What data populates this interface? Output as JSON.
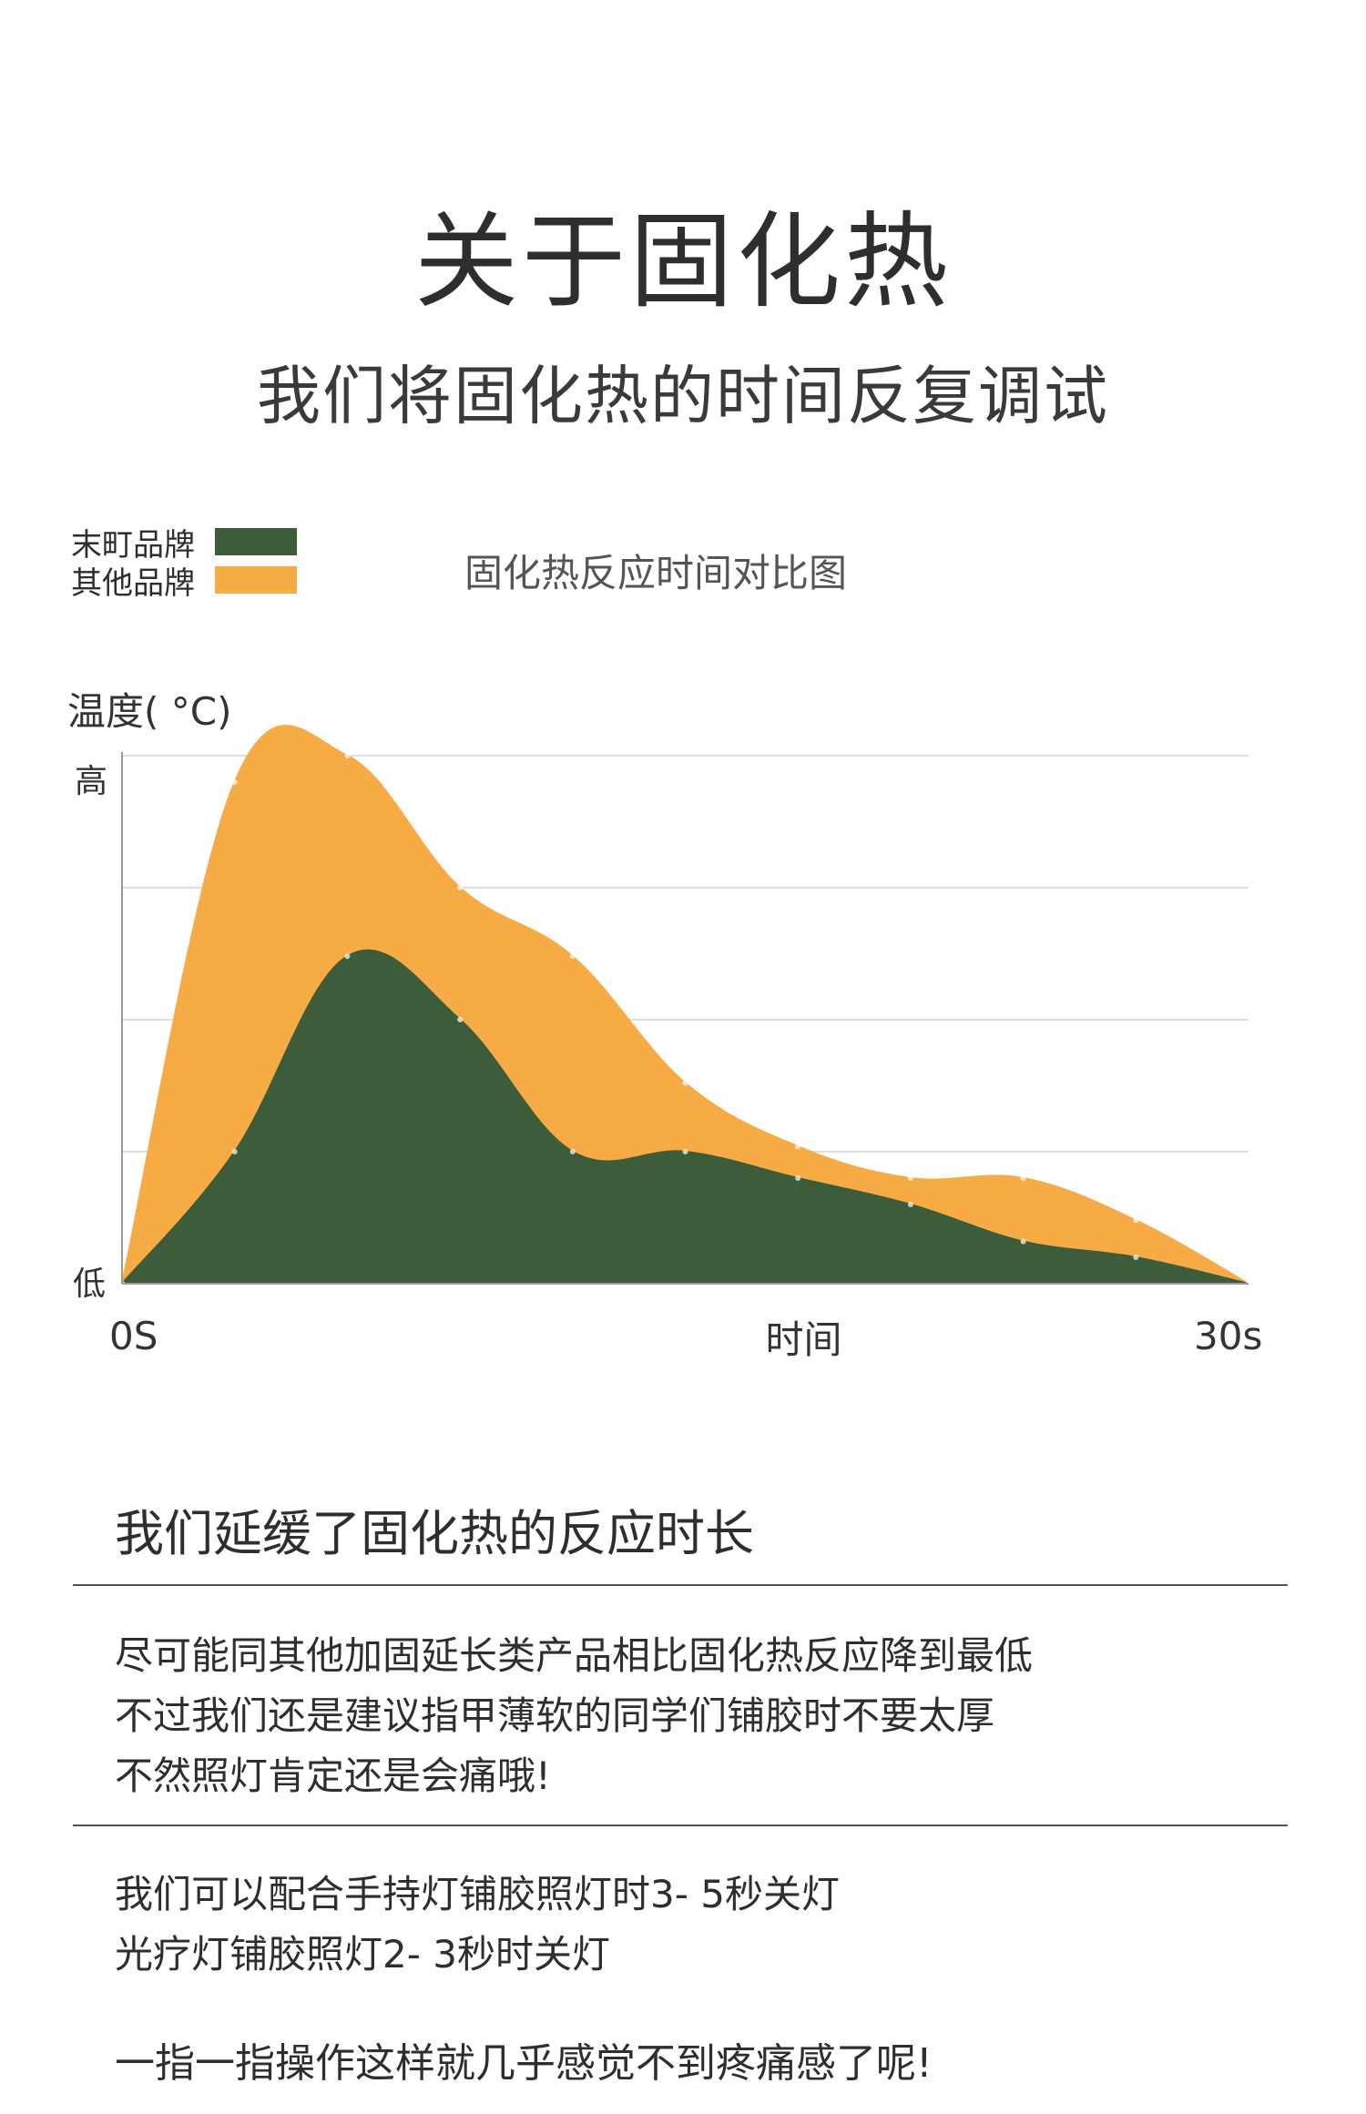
{
  "header": {
    "title": "关于固化热",
    "subtitle": "我们将固化热的时间反复调试"
  },
  "legend": [
    {
      "label": "末町品牌",
      "color": "#3d5c3a"
    },
    {
      "label": "其他品牌",
      "color": "#f6ab45"
    }
  ],
  "chart_caption": "固化热反应时间对比图",
  "chart_data": {
    "type": "area",
    "title": "固化热反应时间对比图",
    "ylabel": "温度( °C)",
    "xlabel": "时间",
    "y_tick_labels": {
      "high": "高",
      "low": "低"
    },
    "x_tick_labels": [
      "0S",
      "30s"
    ],
    "xlim": [
      0,
      30
    ],
    "ylim": [
      0,
      100
    ],
    "grid": true,
    "legend_position": "top-left",
    "x": [
      0,
      3,
      6,
      9,
      12,
      15,
      18,
      21,
      24,
      27,
      30
    ],
    "series": [
      {
        "name": "其他品牌",
        "color": "#f6ab45",
        "values": [
          0,
          95,
          100,
          75,
          62,
          38,
          26,
          20,
          20,
          12,
          0
        ]
      },
      {
        "name": "末町品牌",
        "color": "#3d5c3a",
        "values": [
          0,
          25,
          62,
          50,
          25,
          25,
          20,
          15,
          8,
          5,
          0
        ]
      }
    ]
  },
  "section": {
    "heading": "我们延缓了固化热的反应时长",
    "paragraph1": [
      "尽可能同其他加固延长类产品相比固化热反应降到最低",
      "不过我们还是建议指甲薄软的同学们铺胶时不要太厚",
      "不然照灯肯定还是会痛哦!"
    ],
    "paragraph2": [
      "我们可以配合手持灯铺胶照灯时3- 5秒关灯",
      "光疗灯铺胶照灯2- 3秒时关灯"
    ],
    "final": "一指一指操作这样就几乎感觉不到疼痛感了呢!"
  }
}
